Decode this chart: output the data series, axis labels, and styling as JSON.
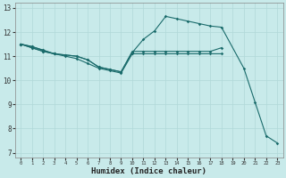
{
  "xlabel": "Humidex (Indice chaleur)",
  "background_color": "#c8eaea",
  "grid_color": "#b0d8d8",
  "line_color": "#1a6b6b",
  "xlim": [
    -0.5,
    23.5
  ],
  "ylim": [
    6.8,
    13.2
  ],
  "xticks": [
    0,
    1,
    2,
    3,
    4,
    5,
    6,
    7,
    8,
    9,
    10,
    11,
    12,
    13,
    14,
    15,
    16,
    17,
    18,
    19,
    20,
    21,
    22,
    23
  ],
  "yticks": [
    7,
    8,
    9,
    10,
    11,
    12,
    13
  ],
  "line1_x": [
    0,
    1,
    2,
    3,
    4,
    5,
    6,
    7,
    8,
    9,
    10,
    11,
    12,
    13,
    14,
    15,
    16,
    17,
    18
  ],
  "line1_y": [
    11.5,
    11.4,
    11.25,
    11.1,
    11.05,
    11.0,
    10.85,
    10.55,
    10.45,
    10.35,
    11.2,
    11.2,
    11.2,
    11.2,
    11.2,
    11.2,
    11.2,
    11.2,
    11.35
  ],
  "line2_x": [
    0,
    1,
    2,
    3,
    4,
    5,
    6,
    7,
    8,
    9,
    10,
    11,
    12,
    13,
    14,
    15,
    16,
    17,
    18,
    20,
    21,
    22,
    23
  ],
  "line2_y": [
    11.5,
    11.4,
    11.25,
    11.1,
    11.05,
    11.0,
    10.85,
    10.55,
    10.45,
    10.35,
    11.15,
    11.7,
    12.05,
    12.65,
    12.55,
    12.45,
    12.35,
    12.25,
    12.2,
    10.5,
    9.1,
    7.7,
    7.4
  ],
  "line3_x": [
    0,
    1,
    2,
    3,
    4,
    5,
    6,
    7,
    8,
    9,
    10,
    11,
    12,
    13,
    14,
    15,
    16,
    17,
    18
  ],
  "line3_y": [
    11.5,
    11.35,
    11.2,
    11.1,
    11.0,
    10.9,
    10.7,
    10.5,
    10.4,
    10.3,
    11.1,
    11.1,
    11.1,
    11.1,
    11.1,
    11.1,
    11.1,
    11.1,
    11.1
  ],
  "line4_x": [
    0,
    1,
    2,
    3
  ],
  "line4_y": [
    11.5,
    11.35,
    11.2,
    11.1
  ]
}
